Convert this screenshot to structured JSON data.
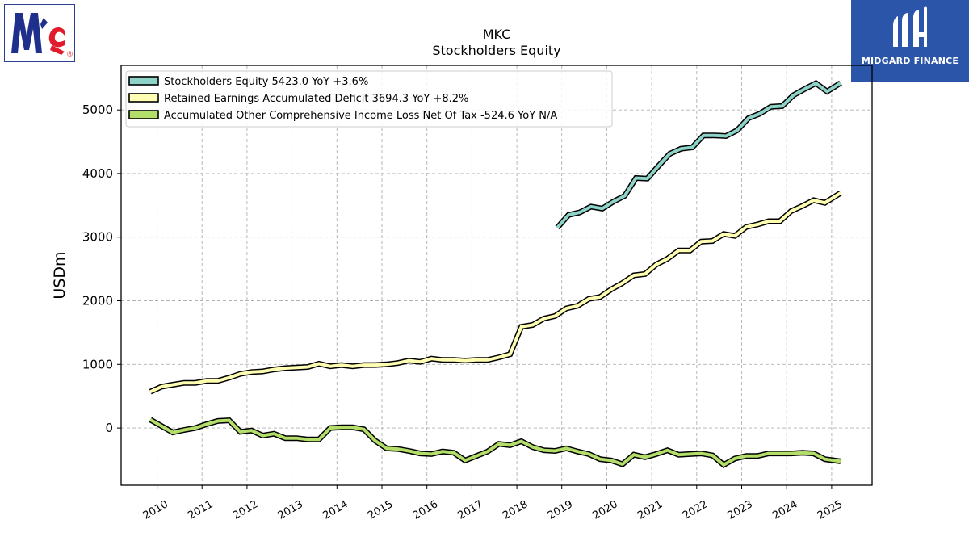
{
  "logos": {
    "left": {
      "name": "McCormick",
      "mark_text": "Mc",
      "registered": "®"
    },
    "right": {
      "brand_text": "MIDGARD FINANCE"
    }
  },
  "chart_data": {
    "type": "line",
    "title": "MKC",
    "subtitle": "Stockholders  Equity",
    "xlabel": "",
    "ylabel": "USDm",
    "xlim": [
      2009.2,
      2025.9
    ],
    "ylim": [
      -900,
      5700
    ],
    "x_ticks": [
      2010,
      2011,
      2012,
      2013,
      2014,
      2015,
      2016,
      2017,
      2018,
      2019,
      2020,
      2021,
      2022,
      2023,
      2024,
      2025
    ],
    "y_ticks": [
      0,
      1000,
      2000,
      3000,
      4000,
      5000
    ],
    "grid": true,
    "legend_position": "top-left",
    "series": [
      {
        "name": "Stockholders Equity  5423.0 YoY +3.6%",
        "color": "#8dd3c7",
        "points": [
          [
            2018.9,
            3150
          ],
          [
            2019.15,
            3350
          ],
          [
            2019.4,
            3390
          ],
          [
            2019.65,
            3480
          ],
          [
            2019.9,
            3450
          ],
          [
            2020.15,
            3560
          ],
          [
            2020.4,
            3650
          ],
          [
            2020.65,
            3930
          ],
          [
            2020.9,
            3920
          ],
          [
            2021.15,
            4120
          ],
          [
            2021.4,
            4310
          ],
          [
            2021.65,
            4390
          ],
          [
            2021.9,
            4410
          ],
          [
            2022.15,
            4600
          ],
          [
            2022.4,
            4600
          ],
          [
            2022.65,
            4590
          ],
          [
            2022.9,
            4680
          ],
          [
            2023.15,
            4870
          ],
          [
            2023.4,
            4940
          ],
          [
            2023.65,
            5050
          ],
          [
            2023.9,
            5060
          ],
          [
            2024.15,
            5230
          ],
          [
            2024.4,
            5330
          ],
          [
            2024.65,
            5420
          ],
          [
            2024.9,
            5290
          ],
          [
            2025.2,
            5423
          ]
        ]
      },
      {
        "name": "Retained Earnings Accumulated Deficit  3694.3 YoY +8.2%",
        "color": "#ffffb3",
        "points": [
          [
            2009.85,
            570
          ],
          [
            2010.1,
            650
          ],
          [
            2010.35,
            680
          ],
          [
            2010.6,
            710
          ],
          [
            2010.85,
            710
          ],
          [
            2011.1,
            740
          ],
          [
            2011.35,
            740
          ],
          [
            2011.6,
            790
          ],
          [
            2011.85,
            850
          ],
          [
            2012.1,
            880
          ],
          [
            2012.35,
            890
          ],
          [
            2012.6,
            920
          ],
          [
            2012.85,
            940
          ],
          [
            2013.1,
            950
          ],
          [
            2013.35,
            960
          ],
          [
            2013.6,
            1010
          ],
          [
            2013.85,
            970
          ],
          [
            2014.1,
            990
          ],
          [
            2014.35,
            970
          ],
          [
            2014.6,
            990
          ],
          [
            2014.85,
            990
          ],
          [
            2015.1,
            1000
          ],
          [
            2015.35,
            1020
          ],
          [
            2015.6,
            1060
          ],
          [
            2015.85,
            1040
          ],
          [
            2016.1,
            1090
          ],
          [
            2016.35,
            1070
          ],
          [
            2016.6,
            1070
          ],
          [
            2016.85,
            1060
          ],
          [
            2017.1,
            1070
          ],
          [
            2017.35,
            1070
          ],
          [
            2017.6,
            1110
          ],
          [
            2017.85,
            1160
          ],
          [
            2018.1,
            1590
          ],
          [
            2018.35,
            1620
          ],
          [
            2018.6,
            1720
          ],
          [
            2018.85,
            1760
          ],
          [
            2019.1,
            1880
          ],
          [
            2019.35,
            1920
          ],
          [
            2019.6,
            2030
          ],
          [
            2019.85,
            2060
          ],
          [
            2020.1,
            2180
          ],
          [
            2020.35,
            2280
          ],
          [
            2020.6,
            2400
          ],
          [
            2020.85,
            2420
          ],
          [
            2021.1,
            2570
          ],
          [
            2021.35,
            2660
          ],
          [
            2021.6,
            2790
          ],
          [
            2021.85,
            2790
          ],
          [
            2022.1,
            2930
          ],
          [
            2022.35,
            2940
          ],
          [
            2022.6,
            3050
          ],
          [
            2022.85,
            3020
          ],
          [
            2023.1,
            3160
          ],
          [
            2023.35,
            3200
          ],
          [
            2023.6,
            3250
          ],
          [
            2023.85,
            3250
          ],
          [
            2024.1,
            3410
          ],
          [
            2024.35,
            3490
          ],
          [
            2024.6,
            3580
          ],
          [
            2024.85,
            3540
          ],
          [
            2025.2,
            3694
          ]
        ]
      },
      {
        "name": "Accumulated Other Comprehensive Income Loss Net Of Tax  -524.6 YoY N/A",
        "color": "#b3de69",
        "points": [
          [
            2009.85,
            130
          ],
          [
            2010.1,
            30
          ],
          [
            2010.35,
            -70
          ],
          [
            2010.6,
            -30
          ],
          [
            2010.85,
            0
          ],
          [
            2011.1,
            60
          ],
          [
            2011.35,
            110
          ],
          [
            2011.6,
            120
          ],
          [
            2011.85,
            -60
          ],
          [
            2012.1,
            -40
          ],
          [
            2012.35,
            -120
          ],
          [
            2012.6,
            -90
          ],
          [
            2012.85,
            -160
          ],
          [
            2013.1,
            -160
          ],
          [
            2013.35,
            -180
          ],
          [
            2013.6,
            -180
          ],
          [
            2013.85,
            0
          ],
          [
            2014.1,
            10
          ],
          [
            2014.35,
            10
          ],
          [
            2014.6,
            -20
          ],
          [
            2014.85,
            -200
          ],
          [
            2015.1,
            -320
          ],
          [
            2015.35,
            -330
          ],
          [
            2015.6,
            -360
          ],
          [
            2015.85,
            -400
          ],
          [
            2016.1,
            -410
          ],
          [
            2016.35,
            -370
          ],
          [
            2016.6,
            -390
          ],
          [
            2016.85,
            -510
          ],
          [
            2017.1,
            -440
          ],
          [
            2017.35,
            -370
          ],
          [
            2017.6,
            -250
          ],
          [
            2017.85,
            -270
          ],
          [
            2018.1,
            -210
          ],
          [
            2018.35,
            -300
          ],
          [
            2018.6,
            -350
          ],
          [
            2018.85,
            -360
          ],
          [
            2019.1,
            -320
          ],
          [
            2019.35,
            -370
          ],
          [
            2019.6,
            -410
          ],
          [
            2019.85,
            -490
          ],
          [
            2020.1,
            -510
          ],
          [
            2020.35,
            -570
          ],
          [
            2020.6,
            -420
          ],
          [
            2020.85,
            -460
          ],
          [
            2021.1,
            -410
          ],
          [
            2021.35,
            -350
          ],
          [
            2021.6,
            -420
          ],
          [
            2021.85,
            -410
          ],
          [
            2022.1,
            -400
          ],
          [
            2022.35,
            -430
          ],
          [
            2022.6,
            -580
          ],
          [
            2022.85,
            -480
          ],
          [
            2023.1,
            -440
          ],
          [
            2023.35,
            -440
          ],
          [
            2023.6,
            -400
          ],
          [
            2023.85,
            -400
          ],
          [
            2024.1,
            -400
          ],
          [
            2024.35,
            -390
          ],
          [
            2024.6,
            -400
          ],
          [
            2024.85,
            -490
          ],
          [
            2025.2,
            -524.6
          ]
        ]
      }
    ]
  }
}
